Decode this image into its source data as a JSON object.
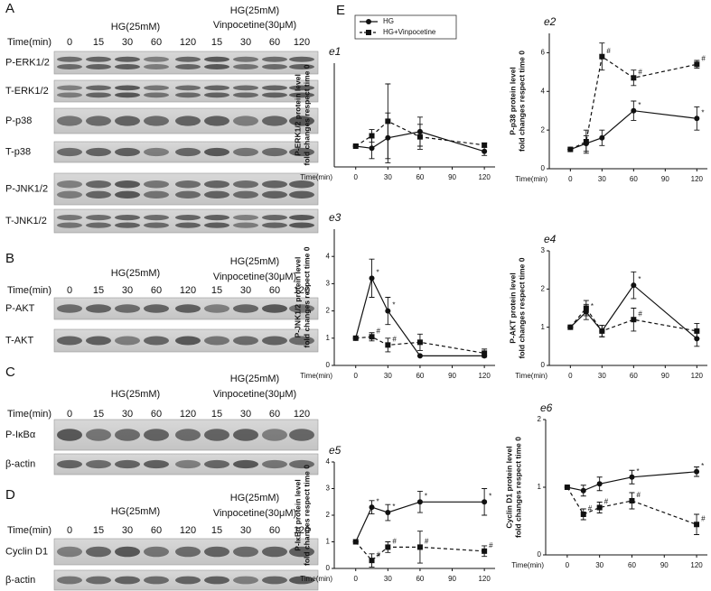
{
  "blots": [
    {
      "label": "A",
      "group1": "HG(25mM)",
      "group2": [
        "HG(25mM)",
        "Vinpocetine(30μM)"
      ],
      "time_label": "Time(min)",
      "times": [
        "0",
        "15",
        "30",
        "60",
        "120",
        "15",
        "30",
        "60",
        "120"
      ],
      "rows": [
        "P-ERK1/2",
        "T-ERK1/2",
        "P-p38",
        "T-p38",
        "P-JNK1/2",
        "T-JNK1/2"
      ]
    },
    {
      "label": "B",
      "group1": "HG(25mM)",
      "group2": [
        "HG(25mM)",
        "Vinpocetine(30μM)"
      ],
      "time_label": "Time(min)",
      "times": [
        "0",
        "15",
        "30",
        "60",
        "120",
        "15",
        "30",
        "60",
        "120"
      ],
      "rows": [
        "P-AKT",
        "T-AKT"
      ]
    },
    {
      "label": "C",
      "group1": "HG(25mM)",
      "group2": [
        "HG(25mM)",
        "Vinpocetine(30μM)"
      ],
      "time_label": "Time(min)",
      "times": [
        "0",
        "15",
        "30",
        "60",
        "120",
        "15",
        "30",
        "60",
        "120"
      ],
      "rows": [
        "P-IκBα",
        "β-actin"
      ]
    },
    {
      "label": "D",
      "group1": "HG(25mM)",
      "group2": [
        "HG(25mM)",
        "Vinpocetine(30μM)"
      ],
      "time_label": "Time(min)",
      "times": [
        "0",
        "15",
        "30",
        "60",
        "120",
        "15",
        "30",
        "60",
        "120"
      ],
      "rows": [
        "Cyclin D1",
        "β-actin"
      ]
    }
  ],
  "panel_e": {
    "label": "E",
    "legend": [
      "HG",
      "HG+Vinpocetine"
    ]
  },
  "chart_data": [
    {
      "type": "line",
      "title": "e1",
      "ylabel": [
        "P-ERK1/2 protein level",
        "fold changes respect time 0"
      ],
      "xlabel": "Time(min)",
      "x": [
        0,
        15,
        30,
        60,
        120
      ],
      "xlim": [
        -20,
        130
      ],
      "xticks": [
        0,
        30,
        60,
        90,
        120
      ],
      "ylim": [
        0,
        5
      ],
      "series": [
        {
          "style": "solid",
          "marker": "circle",
          "color": "#111111",
          "values": [
            1,
            0.9,
            1.4,
            1.7,
            0.75
          ],
          "errors": [
            0,
            0.5,
            1.2,
            0.7,
            0.2
          ]
        },
        {
          "style": "dashed",
          "marker": "square",
          "color": "#111111",
          "values": [
            1,
            1.5,
            2.2,
            1.45,
            1.05
          ],
          "errors": [
            0,
            0.3,
            1.8,
            0.6,
            0.1
          ]
        }
      ]
    },
    {
      "type": "line",
      "title": "e2",
      "ylabel": [
        "P-p38 protein level",
        "fold changes respect time 0"
      ],
      "xlabel": "Time(min)",
      "x": [
        0,
        15,
        30,
        60,
        120
      ],
      "xlim": [
        -20,
        130
      ],
      "xticks": [
        0,
        30,
        60,
        90,
        120
      ],
      "ylim": [
        0,
        7
      ],
      "yticks": [
        0,
        2,
        4,
        6
      ],
      "series": [
        {
          "style": "solid",
          "marker": "circle",
          "color": "#111111",
          "values": [
            1,
            1.3,
            1.6,
            3.0,
            2.6
          ],
          "errors": [
            0,
            0.4,
            0.4,
            0.5,
            0.6
          ],
          "notes": [
            null,
            null,
            null,
            "*",
            "*"
          ]
        },
        {
          "style": "dashed",
          "marker": "square",
          "color": "#111111",
          "values": [
            1,
            1.4,
            5.8,
            4.7,
            5.4
          ],
          "errors": [
            0,
            0.6,
            0.7,
            0.4,
            0.2
          ],
          "notes": [
            null,
            null,
            "#",
            "#",
            "#"
          ]
        }
      ]
    },
    {
      "type": "line",
      "title": "e3",
      "ylabel": [
        "P-JNK1/2 protein level",
        "fold changes respect time 0"
      ],
      "xlabel": "Time(min)",
      "x": [
        0,
        15,
        30,
        60,
        120
      ],
      "xlim": [
        -20,
        130
      ],
      "xticks": [
        0,
        30,
        60,
        90,
        120
      ],
      "ylim": [
        0,
        5
      ],
      "yticks": [
        0,
        1,
        2,
        3,
        4
      ],
      "series": [
        {
          "style": "solid",
          "marker": "circle",
          "color": "#111111",
          "values": [
            1,
            3.2,
            2.0,
            0.35,
            0.35
          ],
          "errors": [
            0,
            0.7,
            0.5,
            0,
            0
          ],
          "notes": [
            null,
            "*",
            "*",
            null,
            null
          ]
        },
        {
          "style": "dashed",
          "marker": "square",
          "color": "#111111",
          "values": [
            1,
            1.05,
            0.75,
            0.85,
            0.45
          ],
          "errors": [
            0,
            0.15,
            0.25,
            0.3,
            0.15
          ],
          "notes": [
            null,
            "#",
            "#",
            null,
            null
          ]
        }
      ]
    },
    {
      "type": "line",
      "title": "e4",
      "ylabel": [
        "P-AKT protein level",
        "fold changes respect time 0"
      ],
      "xlabel": "Time(min)",
      "x": [
        0,
        15,
        30,
        60,
        120
      ],
      "xlim": [
        -20,
        130
      ],
      "xticks": [
        0,
        30,
        60,
        90,
        120
      ],
      "ylim": [
        0,
        3
      ],
      "yticks": [
        0,
        1,
        2,
        3
      ],
      "series": [
        {
          "style": "solid",
          "marker": "circle",
          "color": "#111111",
          "values": [
            1,
            1.4,
            0.9,
            2.1,
            0.7
          ],
          "errors": [
            0,
            0.2,
            0.15,
            0.35,
            0.2
          ],
          "notes": [
            null,
            "*",
            null,
            "*",
            null
          ]
        },
        {
          "style": "dashed",
          "marker": "square",
          "color": "#111111",
          "values": [
            1,
            1.5,
            0.9,
            1.2,
            0.9
          ],
          "errors": [
            0,
            0.2,
            0.15,
            0.3,
            0.2
          ],
          "notes": [
            null,
            null,
            null,
            "#",
            null
          ]
        }
      ]
    },
    {
      "type": "line",
      "title": "e5",
      "ylabel": [
        "P-IκBα protein level",
        "fold changes respect time 0"
      ],
      "xlabel": "Time(min)",
      "x": [
        0,
        15,
        30,
        60,
        120
      ],
      "xlim": [
        -20,
        130
      ],
      "xticks": [
        0,
        30,
        60,
        90,
        120
      ],
      "ylim": [
        0,
        4
      ],
      "yticks": [
        0,
        1,
        2,
        3,
        4
      ],
      "series": [
        {
          "style": "solid",
          "marker": "circle",
          "color": "#111111",
          "values": [
            1,
            2.3,
            2.1,
            2.5,
            2.5
          ],
          "errors": [
            0,
            0.25,
            0.3,
            0.4,
            0.5
          ],
          "notes": [
            null,
            "*",
            "*",
            "*",
            "*"
          ]
        },
        {
          "style": "dashed",
          "marker": "square",
          "color": "#111111",
          "values": [
            1,
            0.3,
            0.8,
            0.8,
            0.65
          ],
          "errors": [
            0,
            0.25,
            0.2,
            0.6,
            0.2
          ],
          "notes": [
            null,
            "#",
            "#",
            "#",
            "#"
          ]
        }
      ]
    },
    {
      "type": "line",
      "title": "e6",
      "ylabel": [
        "Cyclin D1 protein level",
        "fold changes respect time 0"
      ],
      "xlabel": "Time(min)",
      "x": [
        0,
        15,
        30,
        60,
        120
      ],
      "xlim": [
        -20,
        130
      ],
      "xticks": [
        0,
        30,
        60,
        90,
        120
      ],
      "ylim": [
        0,
        2
      ],
      "yticks": [
        0,
        1,
        2
      ],
      "series": [
        {
          "style": "solid",
          "marker": "circle",
          "color": "#111111",
          "values": [
            1,
            0.95,
            1.05,
            1.15,
            1.23
          ],
          "errors": [
            0,
            0.08,
            0.1,
            0.1,
            0.07
          ],
          "notes": [
            null,
            null,
            null,
            "*",
            "*"
          ]
        },
        {
          "style": "dashed",
          "marker": "square",
          "color": "#111111",
          "values": [
            1,
            0.6,
            0.7,
            0.8,
            0.45
          ],
          "errors": [
            0,
            0.08,
            0.08,
            0.12,
            0.15
          ],
          "notes": [
            null,
            "#",
            "#",
            "#",
            "#"
          ]
        }
      ]
    }
  ]
}
